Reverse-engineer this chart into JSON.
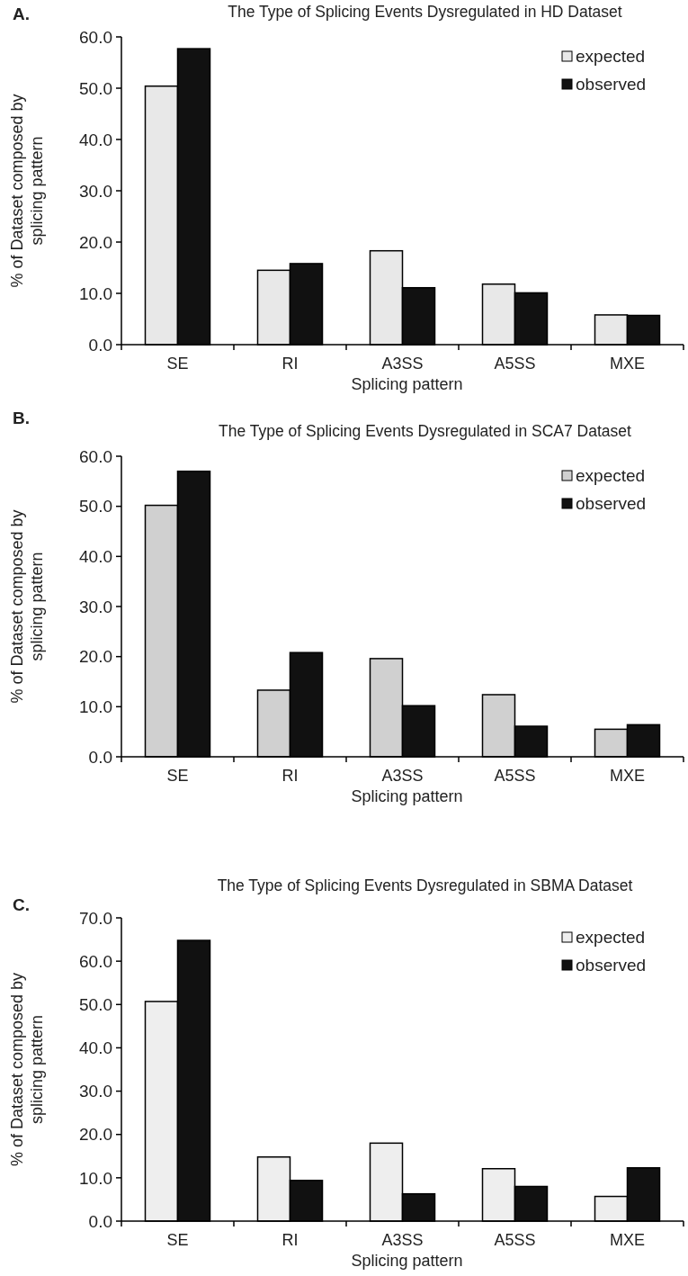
{
  "chart_data": [
    {
      "type": "bar",
      "title": "The Type of Splicing Events Dysregulated in HD Dataset",
      "xlabel": "Splicing pattern",
      "ylabel": "% of Dataset composed by splicing pattern",
      "annotations": [
        "A."
      ],
      "categories": [
        "SE",
        "RI",
        "A3SS",
        "A5SS",
        "MXE"
      ],
      "series": [
        {
          "name": "expected",
          "color": "#e8e8e8",
          "values": [
            50.4,
            14.5,
            18.3,
            11.8,
            5.8
          ]
        },
        {
          "name": "observed",
          "color": "#111111",
          "values": [
            57.7,
            15.8,
            11.1,
            10.1,
            5.7
          ]
        }
      ],
      "ylim": [
        0,
        60
      ],
      "yticks": [
        {
          "value": 0,
          "label": "0.0"
        },
        {
          "value": 10,
          "label": "10.0"
        },
        {
          "value": 20,
          "label": "20.0"
        },
        {
          "value": 30,
          "label": "30.0"
        },
        {
          "value": 40,
          "label": "40.0"
        },
        {
          "value": 50,
          "label": "50.0"
        },
        {
          "value": 60,
          "label": "60.0"
        }
      ],
      "grid": false,
      "legend": "top right"
    },
    {
      "type": "bar",
      "title": "The Type of Splicing Events Dysregulated in SCA7 Dataset",
      "xlabel": "Splicing pattern",
      "ylabel": "% of Dataset composed by splicing pattern",
      "annotations": [
        "B."
      ],
      "categories": [
        "SE",
        "RI",
        "A3SS",
        "A5SS",
        "MXE"
      ],
      "series": [
        {
          "name": "expected",
          "color": "#d0d0d0",
          "values": [
            50.2,
            13.3,
            19.6,
            12.4,
            5.5
          ]
        },
        {
          "name": "observed",
          "color": "#111111",
          "values": [
            57.0,
            20.8,
            10.2,
            6.1,
            6.4
          ]
        }
      ],
      "ylim": [
        0,
        60
      ],
      "yticks": [
        {
          "value": 0,
          "label": "0.0"
        },
        {
          "value": 10,
          "label": "10.0"
        },
        {
          "value": 20,
          "label": "20.0"
        },
        {
          "value": 30,
          "label": "30.0"
        },
        {
          "value": 40,
          "label": "40.0"
        },
        {
          "value": 50,
          "label": "50.0"
        },
        {
          "value": 60,
          "label": "60.0"
        }
      ],
      "grid": false,
      "legend": "top right"
    },
    {
      "type": "bar",
      "title": "The Type of Splicing Events Dysregulated in SBMA Dataset",
      "xlabel": "Splicing pattern",
      "ylabel": "% of Dataset composed by splicing pattern",
      "annotations": [
        "C."
      ],
      "categories": [
        "SE",
        "RI",
        "A3SS",
        "A5SS",
        "MXE"
      ],
      "series": [
        {
          "name": "expected",
          "color": "#eeeeee",
          "values": [
            50.7,
            14.8,
            18.0,
            12.1,
            5.7
          ]
        },
        {
          "name": "observed",
          "color": "#111111",
          "values": [
            64.8,
            9.4,
            6.3,
            8.0,
            12.3
          ]
        }
      ],
      "ylim": [
        0,
        70
      ],
      "yticks": [
        {
          "value": 0,
          "label": "0.0"
        },
        {
          "value": 10,
          "label": "10.0"
        },
        {
          "value": 20,
          "label": "20.0"
        },
        {
          "value": 30,
          "label": "30.0"
        },
        {
          "value": 40,
          "label": "40.0"
        },
        {
          "value": 50,
          "label": "50.0"
        },
        {
          "value": 60,
          "label": "60.0"
        },
        {
          "value": 70,
          "label": "70.0"
        }
      ],
      "grid": false,
      "legend": "top right"
    }
  ]
}
